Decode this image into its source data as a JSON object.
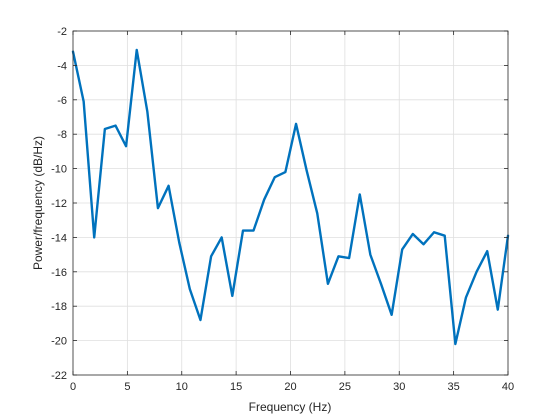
{
  "chart_data": {
    "type": "line",
    "title": "",
    "xlabel": "Frequency (Hz)",
    "ylabel": "Power/frequency (dB/Hz)",
    "xlim": [
      0,
      40
    ],
    "ylim": [
      -22,
      -2
    ],
    "xticks": [
      "0",
      "5",
      "10",
      "15",
      "20",
      "25",
      "30",
      "35",
      "40"
    ],
    "yticks": [
      "-2",
      "-4",
      "-6",
      "-8",
      "-10",
      "-12",
      "-14",
      "-16",
      "-18",
      "-20",
      "-22"
    ],
    "grid": true,
    "line_color": "#0072BD",
    "series": [
      {
        "x": [
          0,
          0.98,
          1.95,
          2.93,
          3.91,
          4.88,
          5.86,
          6.84,
          7.81,
          8.79,
          9.77,
          10.74,
          11.72,
          12.7,
          13.67,
          14.65,
          15.63,
          16.6,
          17.58,
          18.55,
          19.53,
          20.51,
          21.48,
          22.46,
          23.44,
          24.41,
          25.39,
          26.37,
          27.34,
          28.32,
          29.3,
          30.27,
          31.25,
          32.23,
          33.2,
          34.18,
          35.16,
          36.13,
          37.11,
          38.09,
          39.06,
          40.04
        ],
        "values": [
          -3.2,
          -6.1,
          -14.0,
          -7.7,
          -7.5,
          -8.7,
          -3.1,
          -6.7,
          -12.3,
          -11.0,
          -14.3,
          -17.0,
          -18.8,
          -15.1,
          -14.0,
          -17.4,
          -13.6,
          -13.6,
          -11.8,
          -10.5,
          -10.2,
          -7.4,
          -10.1,
          -12.6,
          -16.7,
          -15.1,
          -15.2,
          -11.5,
          -15.0,
          -16.7,
          -18.5,
          -14.7,
          -13.8,
          -14.4,
          -13.7,
          -13.9,
          -20.2,
          -17.5,
          -16.0,
          -14.8,
          -18.2,
          -13.9
        ]
      }
    ]
  }
}
